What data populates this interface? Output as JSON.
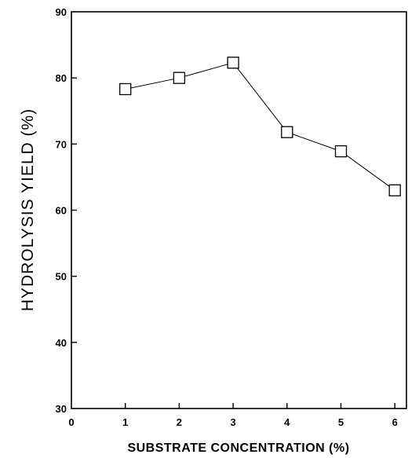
{
  "chart_data": {
    "type": "line",
    "title": "",
    "xlabel": "SUBSTRATE CONCENTRATION (%)",
    "ylabel": "HYDROLYSIS YIELD (%)",
    "xlim": [
      0,
      6.5
    ],
    "ylim": [
      30,
      90
    ],
    "xticks": [
      0,
      1,
      2,
      3,
      4,
      5,
      6
    ],
    "yticks": [
      30,
      40,
      50,
      60,
      70,
      80,
      90
    ],
    "grid": false,
    "marker": "open-square",
    "series": [
      {
        "x": [
          1,
          2,
          3,
          4,
          5,
          6
        ],
        "y": [
          78.3,
          80.0,
          82.3,
          71.8,
          68.9,
          63.0
        ]
      }
    ]
  }
}
